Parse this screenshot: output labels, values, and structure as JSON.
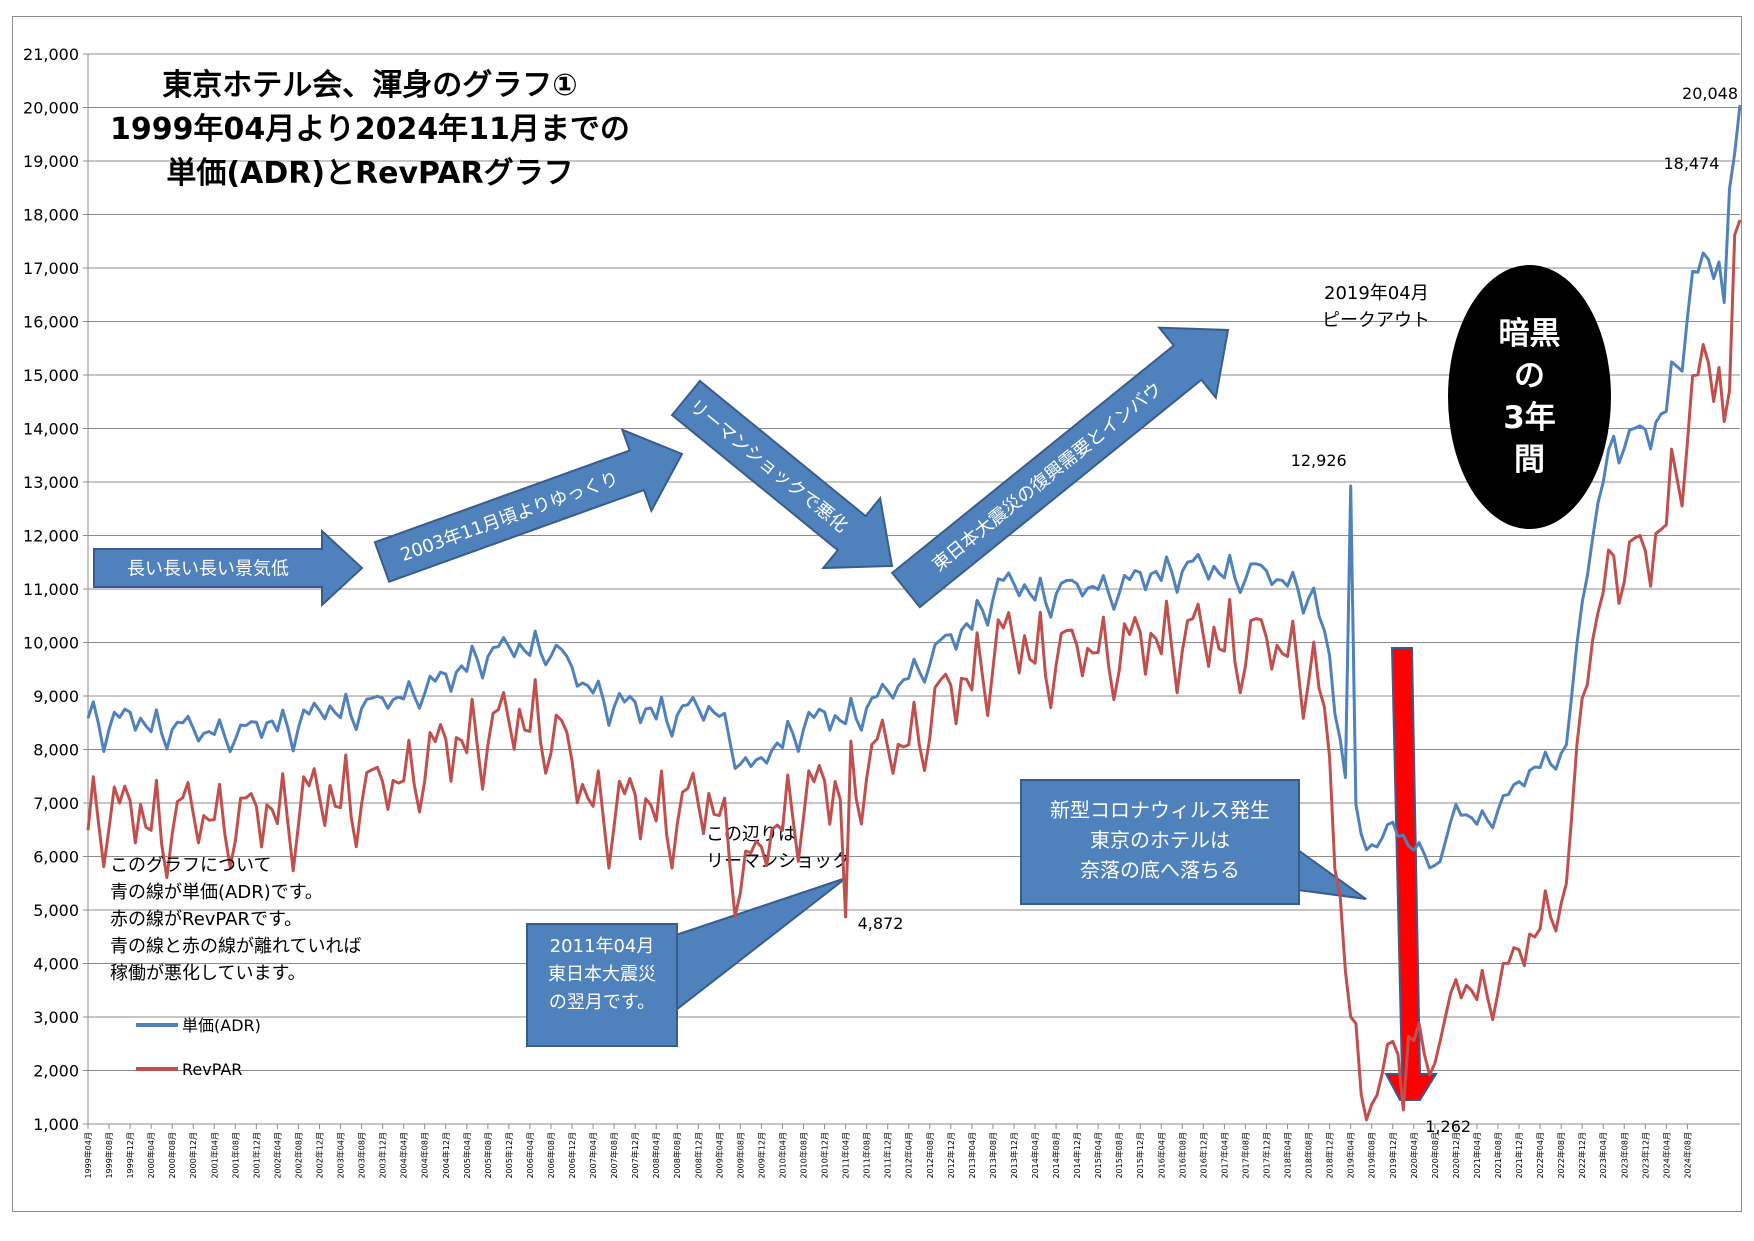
{
  "chart_data": {
    "type": "line",
    "title_lines": [
      "東京ホテル会、渾身のグラフ①",
      "1999年04月より2024年11月までの",
      "単価(ADR)とRevPARグラフ"
    ],
    "y_ticks": [
      "1,000",
      "2,000",
      "3,000",
      "4,000",
      "5,000",
      "6,000",
      "7,000",
      "8,000",
      "9,000",
      "10,000",
      "11,000",
      "12,000",
      "13,000",
      "14,000",
      "15,000",
      "16,000",
      "17,000",
      "18,000",
      "19,000",
      "20,000",
      "21,000"
    ],
    "ylim": [
      1000,
      21000
    ],
    "x_ticks": [
      "1999年04月",
      "1999年08月",
      "1999年12月",
      "2000年04月",
      "2000年08月",
      "2000年12月",
      "2001年04月",
      "2001年08月",
      "2001年12月",
      "2002年04月",
      "2002年08月",
      "2002年12月",
      "2003年04月",
      "2003年08月",
      "2003年12月",
      "2004年04月",
      "2004年08月",
      "2004年12月",
      "2005年04月",
      "2005年08月",
      "2005年12月",
      "2006年04月",
      "2006年08月",
      "2006年12月",
      "2007年04月",
      "2007年08月",
      "2007年12月",
      "2008年04月",
      "2008年08月",
      "2008年12月",
      "2009年04月",
      "2009年08月",
      "2009年12月",
      "2010年04月",
      "2010年08月",
      "2010年12月",
      "2011年04月",
      "2011年08月",
      "2011年12月",
      "2012年04月",
      "2012年08月",
      "2012年12月",
      "2013年04月",
      "2013年08月",
      "2013年12月",
      "2014年04月",
      "2014年08月",
      "2014年12月",
      "2015年04月",
      "2015年08月",
      "2015年12月",
      "2016年04月",
      "2016年08月",
      "2016年12月",
      "2017年04月",
      "2017年08月",
      "2017年12月",
      "2018年04月",
      "2018年08月",
      "2018年12月",
      "2019年04月",
      "2019年08月",
      "2019年12月",
      "2020年04月",
      "2020年08月",
      "2020年12月",
      "2021年04月",
      "2021年08月",
      "2021年12月",
      "2022年04月",
      "2022年08月",
      "2022年12月",
      "2023年04月",
      "2023年08月",
      "2023年12月",
      "2024年04月",
      "2024年08月"
    ],
    "series": [
      {
        "name": "単価(ADR)",
        "color": "#4f81bd",
        "anchors": [
          [
            0,
            8750
          ],
          [
            3,
            8400
          ],
          [
            6,
            8500
          ],
          [
            9,
            8550
          ],
          [
            12,
            8450
          ],
          [
            15,
            8400
          ],
          [
            18,
            8350
          ],
          [
            21,
            8300
          ],
          [
            24,
            8350
          ],
          [
            27,
            8300
          ],
          [
            30,
            8250
          ],
          [
            33,
            8450
          ],
          [
            36,
            8500
          ],
          [
            39,
            8400
          ],
          [
            42,
            8550
          ],
          [
            45,
            8750
          ],
          [
            48,
            8700
          ],
          [
            51,
            8750
          ],
          [
            54,
            8800
          ],
          [
            57,
            8900
          ],
          [
            60,
            9000
          ],
          [
            63,
            9100
          ],
          [
            66,
            9200
          ],
          [
            69,
            9300
          ],
          [
            72,
            9600
          ],
          [
            75,
            9750
          ],
          [
            78,
            9800
          ],
          [
            81,
            9900
          ],
          [
            84,
            9850
          ],
          [
            87,
            9950
          ],
          [
            90,
            9700
          ],
          [
            93,
            9300
          ],
          [
            96,
            9100
          ],
          [
            99,
            8900
          ],
          [
            102,
            8800
          ],
          [
            105,
            8700
          ],
          [
            108,
            8700
          ],
          [
            111,
            8650
          ],
          [
            114,
            8700
          ],
          [
            117,
            8700
          ],
          [
            120,
            8700
          ],
          [
            123,
            8000
          ],
          [
            126,
            7500
          ],
          [
            129,
            7850
          ],
          [
            132,
            8200
          ],
          [
            135,
            8400
          ],
          [
            138,
            8500
          ],
          [
            141,
            8550
          ],
          [
            144,
            8600
          ],
          [
            147,
            8750
          ],
          [
            150,
            8850
          ],
          [
            153,
            9100
          ],
          [
            156,
            9400
          ],
          [
            159,
            9600
          ],
          [
            162,
            9850
          ],
          [
            165,
            10100
          ],
          [
            168,
            10400
          ],
          [
            171,
            10750
          ],
          [
            174,
            11050
          ],
          [
            177,
            11050
          ],
          [
            180,
            10900
          ],
          [
            183,
            10850
          ],
          [
            186,
            11000
          ],
          [
            189,
            11000
          ],
          [
            192,
            11050
          ],
          [
            195,
            10950
          ],
          [
            198,
            11100
          ],
          [
            201,
            11200
          ],
          [
            204,
            11300
          ],
          [
            207,
            11350
          ],
          [
            210,
            11400
          ],
          [
            213,
            11350
          ],
          [
            216,
            11300
          ],
          [
            219,
            11300
          ],
          [
            222,
            11300
          ],
          [
            225,
            11200
          ],
          [
            228,
            11100
          ],
          [
            231,
            11000
          ],
          [
            233,
            10800
          ],
          [
            236,
            9600
          ],
          [
            239,
            7400
          ],
          [
            242,
            6500
          ],
          [
            245,
            6100
          ],
          [
            248,
            6600
          ],
          [
            251,
            6200
          ],
          [
            254,
            6100
          ],
          [
            257,
            5800
          ],
          [
            260,
            6900
          ],
          [
            263,
            6700
          ],
          [
            266,
            6700
          ],
          [
            269,
            7000
          ],
          [
            272,
            7300
          ],
          [
            275,
            7700
          ],
          [
            278,
            7800
          ],
          [
            281,
            8000
          ],
          [
            284,
            10700
          ],
          [
            287,
            12600
          ],
          [
            290,
            13900
          ],
          [
            293,
            13700
          ],
          [
            296,
            13800
          ],
          [
            299,
            14200
          ],
          [
            302,
            15200
          ],
          [
            305,
            16600
          ],
          [
            308,
            17100
          ],
          [
            310,
            17000
          ],
          [
            311,
            16400
          ],
          [
            312,
            17300
          ],
          [
            313,
            18700
          ],
          [
            314,
            20048
          ]
        ]
      },
      {
        "name": "RevPAR",
        "color": "#c0504d",
        "anchors": [
          [
            0,
            6800
          ],
          [
            3,
            6900
          ],
          [
            6,
            6700
          ],
          [
            9,
            6800
          ],
          [
            12,
            6700
          ],
          [
            15,
            6600
          ],
          [
            18,
            6700
          ],
          [
            21,
            6700
          ],
          [
            24,
            6800
          ],
          [
            27,
            6700
          ],
          [
            30,
            6600
          ],
          [
            33,
            6800
          ],
          [
            36,
            6900
          ],
          [
            39,
            6800
          ],
          [
            42,
            7000
          ],
          [
            45,
            7100
          ],
          [
            48,
            7100
          ],
          [
            51,
            7150
          ],
          [
            54,
            7200
          ],
          [
            57,
            7300
          ],
          [
            60,
            7500
          ],
          [
            63,
            7700
          ],
          [
            66,
            7900
          ],
          [
            69,
            8000
          ],
          [
            72,
            8200
          ],
          [
            75,
            8300
          ],
          [
            78,
            8400
          ],
          [
            81,
            8500
          ],
          [
            84,
            8500
          ],
          [
            87,
            8500
          ],
          [
            90,
            8100
          ],
          [
            93,
            7400
          ],
          [
            96,
            7000
          ],
          [
            99,
            6900
          ],
          [
            102,
            6900
          ],
          [
            105,
            6900
          ],
          [
            108,
            6900
          ],
          [
            111,
            6800
          ],
          [
            114,
            6900
          ],
          [
            117,
            6900
          ],
          [
            120,
            6900
          ],
          [
            123,
            5800
          ],
          [
            126,
            5600
          ],
          [
            129,
            6200
          ],
          [
            132,
            6800
          ],
          [
            135,
            7000
          ],
          [
            138,
            7100
          ],
          [
            141,
            7150
          ],
          [
            144,
            7300
          ],
          [
            147,
            7600
          ],
          [
            150,
            7800
          ],
          [
            153,
            8000
          ],
          [
            156,
            8200
          ],
          [
            159,
            8500
          ],
          [
            162,
            8800
          ],
          [
            165,
            9100
          ],
          [
            168,
            9400
          ],
          [
            171,
            9700
          ],
          [
            174,
            9950
          ],
          [
            177,
            9950
          ],
          [
            180,
            9800
          ],
          [
            183,
            9750
          ],
          [
            186,
            9800
          ],
          [
            189,
            9800
          ],
          [
            192,
            9900
          ],
          [
            195,
            9800
          ],
          [
            198,
            9900
          ],
          [
            201,
            10000
          ],
          [
            204,
            10050
          ],
          [
            207,
            10100
          ],
          [
            210,
            10100
          ],
          [
            213,
            10050
          ],
          [
            216,
            10000
          ],
          [
            219,
            10000
          ],
          [
            222,
            10000
          ],
          [
            225,
            9900
          ],
          [
            228,
            9800
          ],
          [
            231,
            9700
          ],
          [
            233,
            9500
          ],
          [
            236,
            7600
          ],
          [
            239,
            3800
          ],
          [
            242,
            1800
          ],
          [
            245,
            1350
          ],
          [
            248,
            2500
          ],
          [
            251,
            2700
          ],
          [
            254,
            2500
          ],
          [
            257,
            2300
          ],
          [
            260,
            3600
          ],
          [
            263,
            3500
          ],
          [
            266,
            3500
          ],
          [
            269,
            3700
          ],
          [
            272,
            4100
          ],
          [
            275,
            4600
          ],
          [
            278,
            5100
          ],
          [
            281,
            5300
          ],
          [
            284,
            8900
          ],
          [
            287,
            10600
          ],
          [
            290,
            11800
          ],
          [
            293,
            11400
          ],
          [
            296,
            11500
          ],
          [
            299,
            12100
          ],
          [
            302,
            13300
          ],
          [
            305,
            14400
          ],
          [
            308,
            15200
          ],
          [
            310,
            14900
          ],
          [
            311,
            14300
          ],
          [
            312,
            14900
          ],
          [
            313,
            16800
          ],
          [
            314,
            18300
          ]
        ]
      }
    ],
    "legend": [
      {
        "label": "単価(ADR)",
        "color": "#4f81bd"
      },
      {
        "label": "RevPAR",
        "color": "#c0504d"
      }
    ],
    "data_labels": [
      {
        "text": "20,048",
        "month": 314,
        "value": 20048
      },
      {
        "text": "18,474",
        "month": 312,
        "value": 18474
      },
      {
        "text": "12,926",
        "month": 240,
        "value": 12926
      },
      {
        "text": "4,872",
        "month": 144,
        "value": 4872
      },
      {
        "text": "1,262",
        "month": 250,
        "value": 1262
      }
    ],
    "annotations": {
      "peak_out": [
        "2019年04月",
        "ピークアウト"
      ],
      "lehman": [
        "この辺りは",
        "リーマンショック"
      ],
      "dark_years": [
        "暗黒",
        "の",
        "3年",
        "間"
      ],
      "note": [
        "このグラフについて",
        "青の線が単価(ADR)です。",
        "赤の線がRevPARです。",
        "青の線と赤の線が離れていれば",
        "稼働が悪化しています。"
      ],
      "arrows": [
        "長い長い長い景気低",
        "2003年11月頃よりゆっくり",
        "リーマンショックで悪化",
        "東日本大震災の復興需要とインバウ"
      ],
      "callout_quake": [
        "2011年04月",
        "東日本大震災",
        "の翌月です。"
      ],
      "callout_covid": [
        "新型コロナウィルス発生",
        "東京のホテルは",
        "奈落の底へ落ちる"
      ]
    }
  }
}
